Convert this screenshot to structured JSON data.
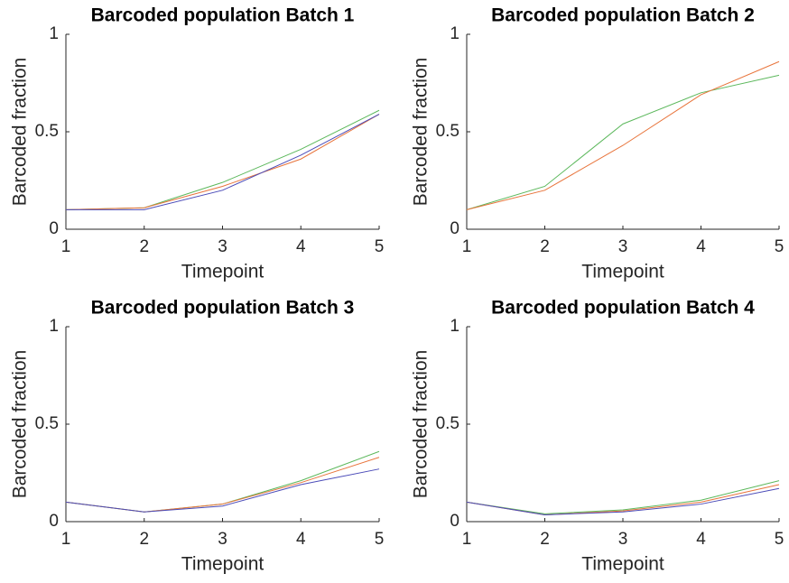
{
  "chart_data": [
    {
      "type": "line",
      "title": "Barcoded population Batch 1",
      "xlabel": "Timepoint",
      "ylabel": "Barcoded fraction",
      "x": [
        1,
        2,
        3,
        4,
        5
      ],
      "xlim": [
        1,
        5
      ],
      "xticks": [
        1,
        2,
        3,
        4,
        5
      ],
      "ylim": [
        0,
        1
      ],
      "yticks": [
        0,
        0.5,
        1
      ],
      "series": [
        {
          "color": "#5cb85c",
          "values": [
            0.1,
            0.11,
            0.24,
            0.41,
            0.61
          ]
        },
        {
          "color": "#e8743b",
          "values": [
            0.1,
            0.11,
            0.22,
            0.36,
            0.59
          ]
        },
        {
          "color": "#4b4bb8",
          "values": [
            0.1,
            0.1,
            0.2,
            0.38,
            0.59
          ]
        }
      ]
    },
    {
      "type": "line",
      "title": "Barcoded population Batch 2",
      "xlabel": "Timepoint",
      "ylabel": "Barcoded fraction",
      "x": [
        1,
        2,
        3,
        4,
        5
      ],
      "xlim": [
        1,
        5
      ],
      "xticks": [
        1,
        2,
        3,
        4,
        5
      ],
      "ylim": [
        0,
        1
      ],
      "yticks": [
        0,
        0.5,
        1
      ],
      "series": [
        {
          "color": "#5cb85c",
          "values": [
            0.1,
            0.22,
            0.54,
            0.7,
            0.79
          ]
        },
        {
          "color": "#e8743b",
          "values": [
            0.1,
            0.2,
            0.43,
            0.69,
            0.86
          ]
        }
      ]
    },
    {
      "type": "line",
      "title": "Barcoded population Batch 3",
      "xlabel": "Timepoint",
      "ylabel": "Barcoded fraction",
      "x": [
        1,
        2,
        3,
        4,
        5
      ],
      "xlim": [
        1,
        5
      ],
      "xticks": [
        1,
        2,
        3,
        4,
        5
      ],
      "ylim": [
        0,
        1
      ],
      "yticks": [
        0,
        0.5,
        1
      ],
      "series": [
        {
          "color": "#5cb85c",
          "values": [
            0.1,
            0.05,
            0.09,
            0.21,
            0.36
          ]
        },
        {
          "color": "#e8743b",
          "values": [
            0.1,
            0.05,
            0.09,
            0.2,
            0.33
          ]
        },
        {
          "color": "#4b4bb8",
          "values": [
            0.1,
            0.05,
            0.08,
            0.19,
            0.27
          ]
        }
      ]
    },
    {
      "type": "line",
      "title": "Barcoded population Batch 4",
      "xlabel": "Timepoint",
      "ylabel": "Barcoded fraction",
      "x": [
        1,
        2,
        3,
        4,
        5
      ],
      "xlim": [
        1,
        5
      ],
      "xticks": [
        1,
        2,
        3,
        4,
        5
      ],
      "ylim": [
        0,
        1
      ],
      "yticks": [
        0,
        0.5,
        1
      ],
      "series": [
        {
          "color": "#5cb85c",
          "values": [
            0.1,
            0.04,
            0.06,
            0.11,
            0.21
          ]
        },
        {
          "color": "#e8743b",
          "values": [
            0.1,
            0.035,
            0.055,
            0.1,
            0.19
          ]
        },
        {
          "color": "#4b4bb8",
          "values": [
            0.1,
            0.035,
            0.05,
            0.09,
            0.17
          ]
        }
      ]
    }
  ]
}
